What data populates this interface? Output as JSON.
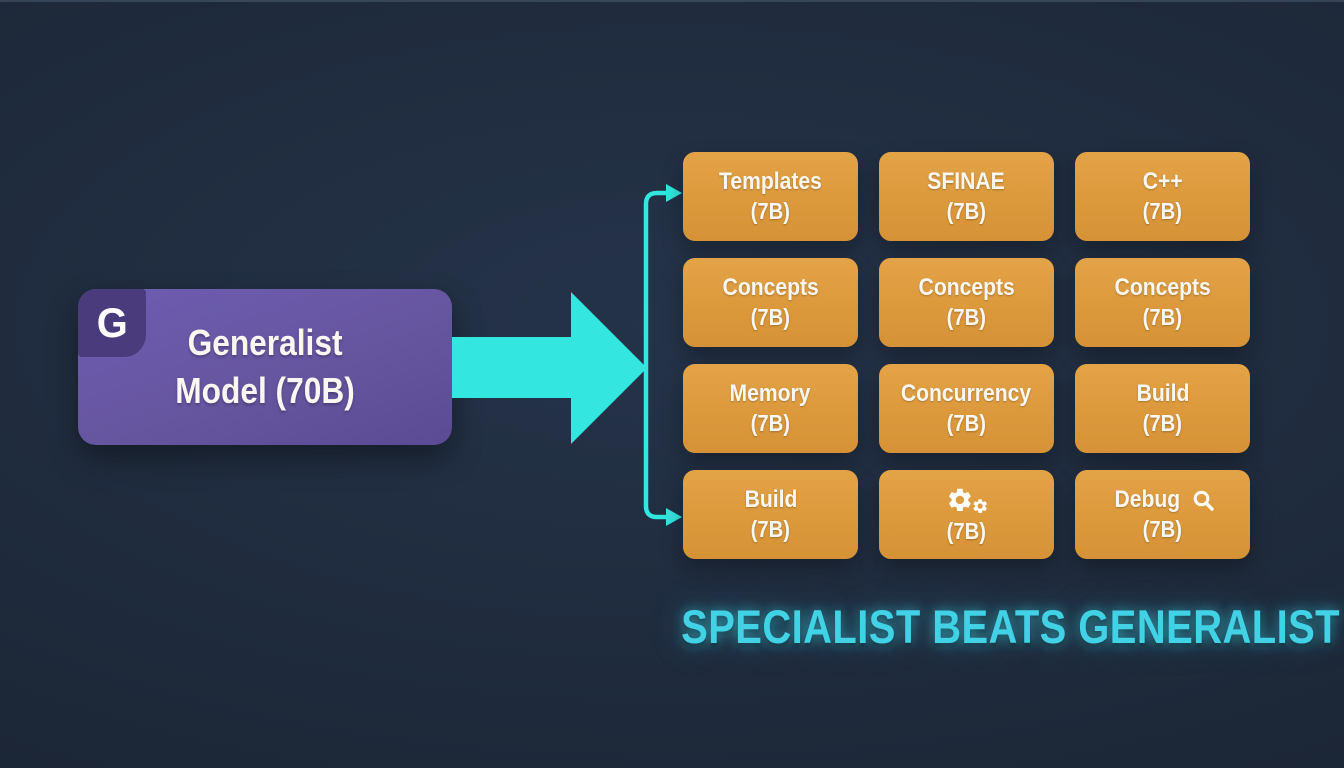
{
  "generalist": {
    "badge_letter": "G",
    "line1": "Generalist",
    "line2": "Model (70B)"
  },
  "headline": {
    "text": "SPECIALIST BEATS GENERALIST"
  },
  "specialists": {
    "boxes": [
      {
        "title": "Templates",
        "size": "(7B)"
      },
      {
        "title": "SFINAE",
        "size": "(7B)"
      },
      {
        "title": "C++",
        "size": "(7B)"
      },
      {
        "title": "Concepts",
        "size": "(7B)"
      },
      {
        "title": "Concepts",
        "size": "(7B)"
      },
      {
        "title": "Concepts",
        "size": "(7B)"
      },
      {
        "title": "Memory",
        "size": "(7B)"
      },
      {
        "title": "Concurrency",
        "size": "(7B)"
      },
      {
        "title": "Build",
        "size": "(7B)"
      },
      {
        "title": "Build",
        "size": "(7B)"
      },
      {
        "title": "",
        "icon": "gears-icon",
        "size": "(7B)"
      },
      {
        "title": "Debug",
        "icon": "search-icon",
        "size": "(7B)"
      }
    ]
  },
  "colors": {
    "background": "#1e2a3b",
    "accent_cyan": "#33e6df",
    "specialist_orange": "#dd9b3e",
    "generalist_purple": "#66559f",
    "badge_purple": "#4a3c7c",
    "headline_cyan": "#41d2e6",
    "text_white": "#faf7f2"
  }
}
